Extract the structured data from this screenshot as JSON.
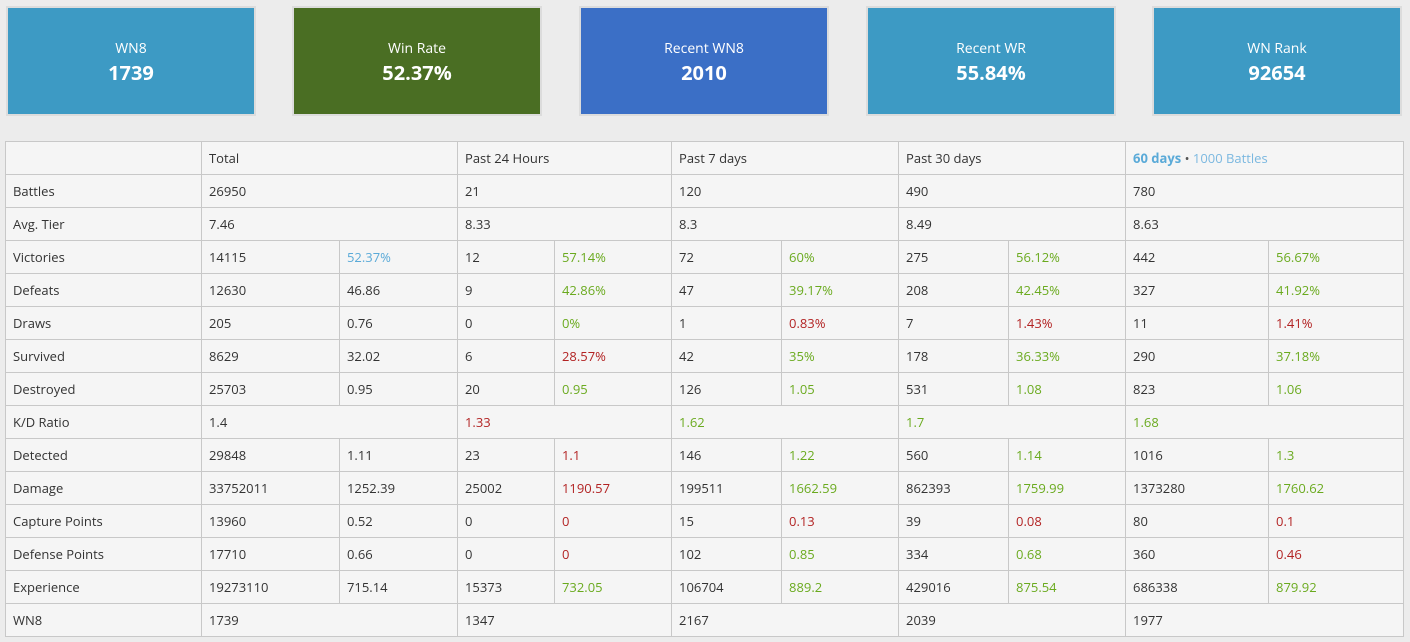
{
  "cards": [
    {
      "label": "WN8",
      "value": "1739",
      "color": "#3d9ac4"
    },
    {
      "label": "Win Rate",
      "value": "52.37%",
      "color": "#4a6e23"
    },
    {
      "label": "Recent WN8",
      "value": "2010",
      "color": "#3b6fc6"
    },
    {
      "label": "Recent WR",
      "value": "55.84%",
      "color": "#3d9ac4"
    },
    {
      "label": "WN Rank",
      "value": "92654",
      "color": "#3d9ac4"
    }
  ],
  "headers": {
    "total": "Total",
    "past_24h": "Past 24 Hours",
    "past_7d": "Past 7 days",
    "past_30d": "Past 30 days",
    "days60": "60 days",
    "bullet": "•",
    "battles1000": "1000 Battles"
  },
  "rows": [
    {
      "label": "Battles",
      "type": "span",
      "cells": [
        [
          "26950",
          ""
        ],
        [
          "21",
          ""
        ],
        [
          "120",
          ""
        ],
        [
          "490",
          ""
        ],
        [
          "780",
          ""
        ]
      ]
    },
    {
      "label": "Avg. Tier",
      "type": "span",
      "cells": [
        [
          "7.46",
          ""
        ],
        [
          "8.33",
          ""
        ],
        [
          "8.3",
          ""
        ],
        [
          "8.49",
          ""
        ],
        [
          "8.63",
          ""
        ]
      ]
    },
    {
      "label": "Victories",
      "type": "pair",
      "cells": [
        [
          "14115",
          ""
        ],
        [
          "52.37%",
          "b"
        ],
        [
          "12",
          ""
        ],
        [
          "57.14%",
          "g"
        ],
        [
          "72",
          ""
        ],
        [
          "60%",
          "g"
        ],
        [
          "275",
          ""
        ],
        [
          "56.12%",
          "g"
        ],
        [
          "442",
          ""
        ],
        [
          "56.67%",
          "g"
        ]
      ]
    },
    {
      "label": "Defeats",
      "type": "pair",
      "cells": [
        [
          "12630",
          ""
        ],
        [
          "46.86",
          ""
        ],
        [
          "9",
          ""
        ],
        [
          "42.86%",
          "g"
        ],
        [
          "47",
          ""
        ],
        [
          "39.17%",
          "g"
        ],
        [
          "208",
          ""
        ],
        [
          "42.45%",
          "g"
        ],
        [
          "327",
          ""
        ],
        [
          "41.92%",
          "g"
        ]
      ]
    },
    {
      "label": "Draws",
      "type": "pair",
      "cells": [
        [
          "205",
          ""
        ],
        [
          "0.76",
          ""
        ],
        [
          "0",
          ""
        ],
        [
          "0%",
          "g"
        ],
        [
          "1",
          ""
        ],
        [
          "0.83%",
          "r"
        ],
        [
          "7",
          ""
        ],
        [
          "1.43%",
          "r"
        ],
        [
          "11",
          ""
        ],
        [
          "1.41%",
          "r"
        ]
      ]
    },
    {
      "label": "Survived",
      "type": "pair",
      "cells": [
        [
          "8629",
          ""
        ],
        [
          "32.02",
          ""
        ],
        [
          "6",
          ""
        ],
        [
          "28.57%",
          "r"
        ],
        [
          "42",
          ""
        ],
        [
          "35%",
          "g"
        ],
        [
          "178",
          ""
        ],
        [
          "36.33%",
          "g"
        ],
        [
          "290",
          ""
        ],
        [
          "37.18%",
          "g"
        ]
      ]
    },
    {
      "label": "Destroyed",
      "type": "pair",
      "cells": [
        [
          "25703",
          ""
        ],
        [
          "0.95",
          ""
        ],
        [
          "20",
          ""
        ],
        [
          "0.95",
          "g"
        ],
        [
          "126",
          ""
        ],
        [
          "1.05",
          "g"
        ],
        [
          "531",
          ""
        ],
        [
          "1.08",
          "g"
        ],
        [
          "823",
          ""
        ],
        [
          "1.06",
          "g"
        ]
      ]
    },
    {
      "label": "K/D Ratio",
      "type": "span",
      "cells": [
        [
          "1.4",
          ""
        ],
        [
          "1.33",
          "r"
        ],
        [
          "1.62",
          "g"
        ],
        [
          "1.7",
          "g"
        ],
        [
          "1.68",
          "g"
        ]
      ]
    },
    {
      "label": "Detected",
      "type": "pair",
      "cells": [
        [
          "29848",
          ""
        ],
        [
          "1.11",
          ""
        ],
        [
          "23",
          ""
        ],
        [
          "1.1",
          "r"
        ],
        [
          "146",
          ""
        ],
        [
          "1.22",
          "g"
        ],
        [
          "560",
          ""
        ],
        [
          "1.14",
          "g"
        ],
        [
          "1016",
          ""
        ],
        [
          "1.3",
          "g"
        ]
      ]
    },
    {
      "label": "Damage",
      "type": "pair",
      "cells": [
        [
          "33752011",
          ""
        ],
        [
          "1252.39",
          ""
        ],
        [
          "25002",
          ""
        ],
        [
          "1190.57",
          "r"
        ],
        [
          "199511",
          ""
        ],
        [
          "1662.59",
          "g"
        ],
        [
          "862393",
          ""
        ],
        [
          "1759.99",
          "g"
        ],
        [
          "1373280",
          ""
        ],
        [
          "1760.62",
          "g"
        ]
      ]
    },
    {
      "label": "Capture Points",
      "type": "pair",
      "cells": [
        [
          "13960",
          ""
        ],
        [
          "0.52",
          ""
        ],
        [
          "0",
          ""
        ],
        [
          "0",
          "r"
        ],
        [
          "15",
          ""
        ],
        [
          "0.13",
          "r"
        ],
        [
          "39",
          ""
        ],
        [
          "0.08",
          "r"
        ],
        [
          "80",
          ""
        ],
        [
          "0.1",
          "r"
        ]
      ]
    },
    {
      "label": "Defense Points",
      "type": "pair",
      "cells": [
        [
          "17710",
          ""
        ],
        [
          "0.66",
          ""
        ],
        [
          "0",
          ""
        ],
        [
          "0",
          "r"
        ],
        [
          "102",
          ""
        ],
        [
          "0.85",
          "g"
        ],
        [
          "334",
          ""
        ],
        [
          "0.68",
          "g"
        ],
        [
          "360",
          ""
        ],
        [
          "0.46",
          "r"
        ]
      ]
    },
    {
      "label": "Experience",
      "type": "pair",
      "cells": [
        [
          "19273110",
          ""
        ],
        [
          "715.14",
          ""
        ],
        [
          "15373",
          ""
        ],
        [
          "732.05",
          "g"
        ],
        [
          "106704",
          ""
        ],
        [
          "889.2",
          "g"
        ],
        [
          "429016",
          ""
        ],
        [
          "875.54",
          "g"
        ],
        [
          "686338",
          ""
        ],
        [
          "879.92",
          "g"
        ]
      ]
    },
    {
      "label": "WN8",
      "type": "span",
      "cells": [
        [
          "1739",
          ""
        ],
        [
          "1347",
          ""
        ],
        [
          "2167",
          ""
        ],
        [
          "2039",
          ""
        ],
        [
          "1977",
          ""
        ]
      ]
    }
  ]
}
